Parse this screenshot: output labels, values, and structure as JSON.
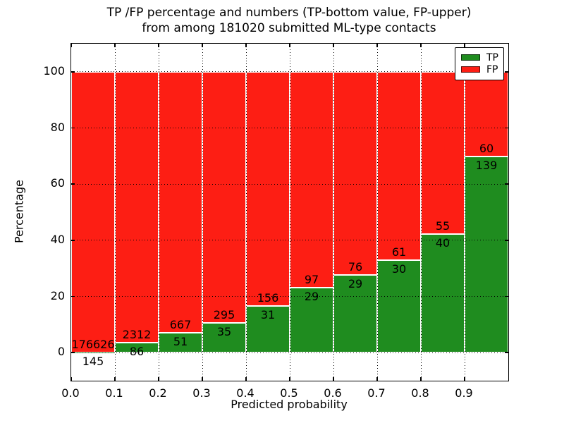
{
  "title": {
    "line1": "TP /FP percentage and numbers (TP-bottom value, FP-upper)",
    "line2": "from among 181020 submitted ML-type contacts"
  },
  "axes": {
    "xlabel": "Predicted probability",
    "ylabel": "Percentage",
    "xlim": [
      0.0,
      1.0
    ],
    "ylim": [
      -10,
      110
    ],
    "xtick_values": [
      0.0,
      0.1,
      0.2,
      0.3,
      0.4,
      0.5,
      0.6,
      0.7,
      0.8,
      0.9
    ],
    "xtick_labels": [
      "0.0",
      "0.1",
      "0.2",
      "0.3",
      "0.4",
      "0.5",
      "0.6",
      "0.7",
      "0.8",
      "0.9"
    ],
    "ytick_values": [
      0,
      20,
      40,
      60,
      80,
      100
    ],
    "ytick_labels": [
      "0",
      "20",
      "40",
      "60",
      "80",
      "100"
    ],
    "grid_style": "dotted"
  },
  "legend": {
    "position": "upper-right",
    "items": [
      {
        "label": "TP",
        "color": "#1f8c1f"
      },
      {
        "label": "FP",
        "color": "#fd1e14"
      }
    ]
  },
  "chart_data": {
    "type": "bar",
    "stacked": true,
    "title": "TP /FP percentage and numbers (TP-bottom value, FP-upper) from among 181020 submitted ML-type contacts",
    "xlabel": "Predicted probability",
    "ylabel": "Percentage",
    "xlim": [
      0.0,
      1.0
    ],
    "ylim": [
      -10,
      110
    ],
    "legend_position": "upper-right",
    "grid": "dotted",
    "bin_edges": [
      0.0,
      0.1,
      0.2,
      0.3,
      0.4,
      0.5,
      0.6,
      0.7,
      0.8,
      0.9,
      1.0
    ],
    "total_shown_in_title": 181020,
    "series": [
      {
        "name": "TP",
        "color": "#1f8c1f",
        "counts": [
          145,
          86,
          51,
          35,
          31,
          29,
          29,
          30,
          40,
          139
        ]
      },
      {
        "name": "FP",
        "color": "#fd1e14",
        "counts": [
          176626,
          2312,
          667,
          295,
          156,
          97,
          76,
          61,
          55,
          60
        ]
      }
    ],
    "bars_stack_to_percent": 100
  }
}
